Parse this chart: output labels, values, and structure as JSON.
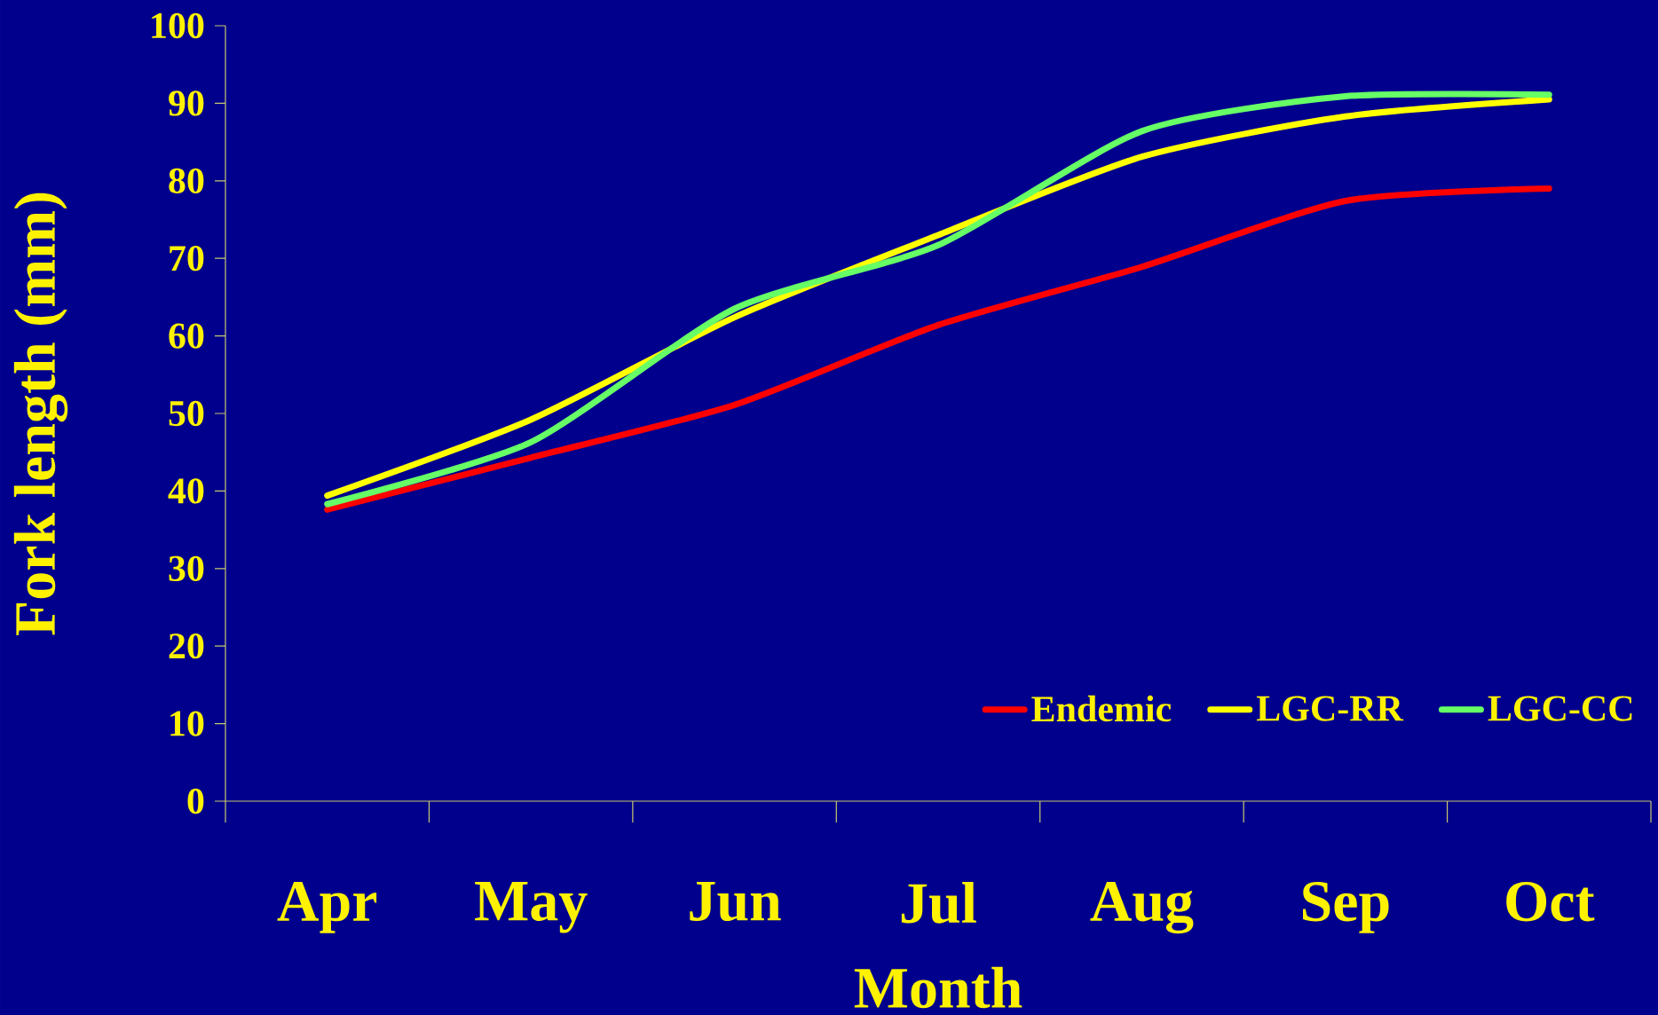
{
  "chart_data": {
    "type": "line",
    "xlabel": "Month",
    "ylabel": "Fork length (mm)",
    "categories": [
      "Apr",
      "May",
      "Jun",
      "Jul",
      "Aug",
      "Sep",
      "Oct"
    ],
    "series": [
      {
        "name": "Endemic",
        "color": "#ff0000",
        "values": [
          37.6,
          44.3,
          51.1,
          61.4,
          68.9,
          77.4,
          79.0
        ]
      },
      {
        "name": "LGC-RR",
        "color": "#ffff00",
        "values": [
          39.4,
          49.2,
          62.4,
          73.0,
          83.1,
          88.3,
          90.5
        ]
      },
      {
        "name": "LGC-CC",
        "color": "#66ff66",
        "values": [
          38.3,
          46.3,
          63.5,
          71.7,
          86.4,
          90.9,
          91.1
        ]
      }
    ],
    "ylim": [
      0,
      100
    ],
    "yticks": [
      0,
      10,
      20,
      30,
      40,
      50,
      60,
      70,
      80,
      90,
      100
    ],
    "legend": "bottom right",
    "marker": "none",
    "line_style": "solid",
    "grid": false
  }
}
